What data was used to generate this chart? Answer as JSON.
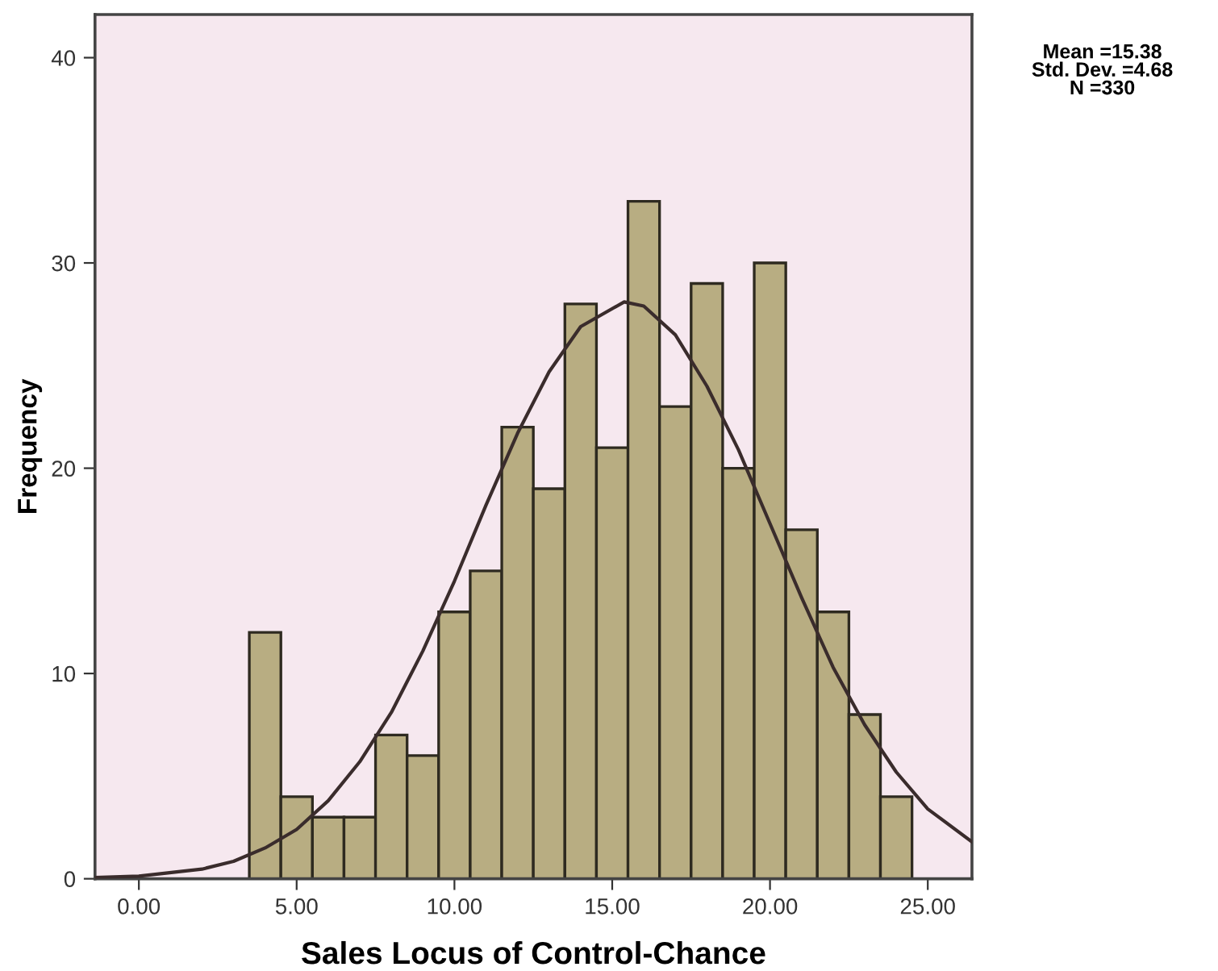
{
  "chart_data": {
    "type": "histogram",
    "xlabel": "Sales Locus of Control-Chance",
    "ylabel": "Frequency",
    "bins": [
      3.5,
      4.5,
      5.5,
      6.5,
      7.5,
      8.5,
      9.5,
      10.5,
      11.5,
      12.5,
      13.5,
      14.5,
      15.5,
      16.5,
      17.5,
      18.5,
      19.5,
      20.5,
      21.5,
      22.5,
      23.5,
      24.5
    ],
    "values": [
      12,
      4,
      3,
      3,
      7,
      6,
      13,
      15,
      22,
      19,
      28,
      21,
      33,
      23,
      29,
      20,
      30,
      17,
      13,
      8,
      4
    ],
    "color": "#b8ad82",
    "series": [
      {
        "type": "line",
        "color": "#3a2c2c",
        "x": [
          -1.39,
          0,
          2,
          3,
          4,
          5,
          6,
          7,
          8,
          9,
          10,
          11,
          12,
          13,
          14,
          15.38,
          16,
          17,
          18,
          19,
          20,
          21,
          22,
          23,
          24,
          25,
          26.4
        ],
        "values": [
          0.06,
          0.13,
          0.47,
          0.85,
          1.5,
          2.4,
          3.8,
          5.7,
          8.1,
          11.1,
          14.5,
          18.2,
          21.7,
          24.7,
          26.9,
          28.1,
          27.9,
          26.5,
          24.0,
          20.9,
          17.3,
          13.7,
          10.3,
          7.5,
          5.2,
          3.4,
          1.8
        ]
      }
    ],
    "xlim": [
      -1.39,
      26.4
    ],
    "ylim": [
      0,
      42.1
    ],
    "xticks": [
      {
        "value": 0,
        "label": "0.00"
      },
      {
        "value": 5,
        "label": "5.00"
      },
      {
        "value": 10,
        "label": "10.00"
      },
      {
        "value": 15,
        "label": "15.00"
      },
      {
        "value": 20,
        "label": "20.00"
      },
      {
        "value": 25,
        "label": "25.00"
      }
    ],
    "yticks": [
      0,
      10,
      20,
      30,
      40
    ],
    "grid": false,
    "legend": false,
    "annotations": [
      "Mean =15.38\nStd. Dev. =4.68\nN =330"
    ]
  }
}
